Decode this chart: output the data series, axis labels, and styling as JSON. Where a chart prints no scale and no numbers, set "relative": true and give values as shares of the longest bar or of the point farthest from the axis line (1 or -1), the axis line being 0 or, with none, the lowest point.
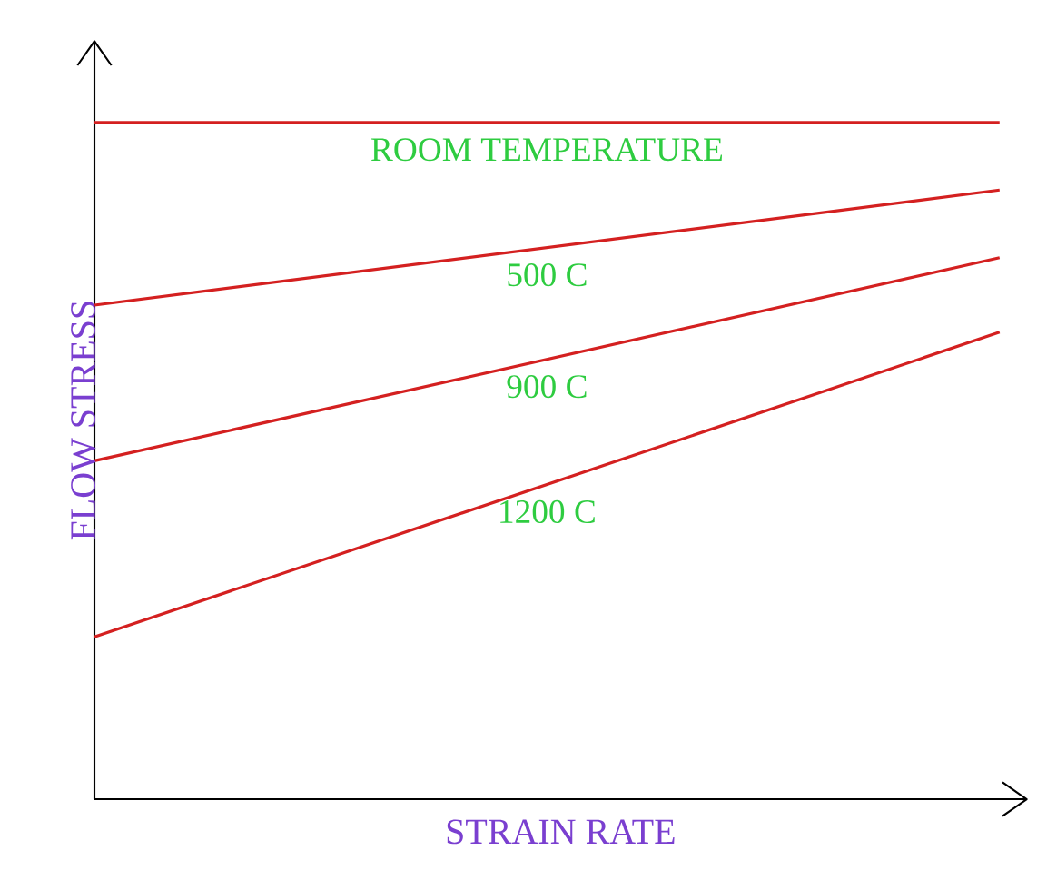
{
  "chart_data": {
    "type": "line",
    "relative": true,
    "xlabel": "STRAIN RATE",
    "ylabel": "FLOW STRESS",
    "categories": [
      null,
      null
    ],
    "legend": false,
    "grid": false,
    "marker": "none",
    "line_style": "solid",
    "series": [
      {
        "name": "ROOM TEMPERATURE",
        "color": "#d42020",
        "values": [
          1,
          1
        ]
      },
      {
        "name": "500 C",
        "color": "#d42020",
        "values": [
          0.73,
          0.9
        ]
      },
      {
        "name": "900 C",
        "color": "#d42020",
        "values": [
          0.5,
          0.8
        ]
      },
      {
        "name": "1200 C",
        "color": "#d42020",
        "values": [
          0.24,
          0.69
        ]
      }
    ]
  }
}
